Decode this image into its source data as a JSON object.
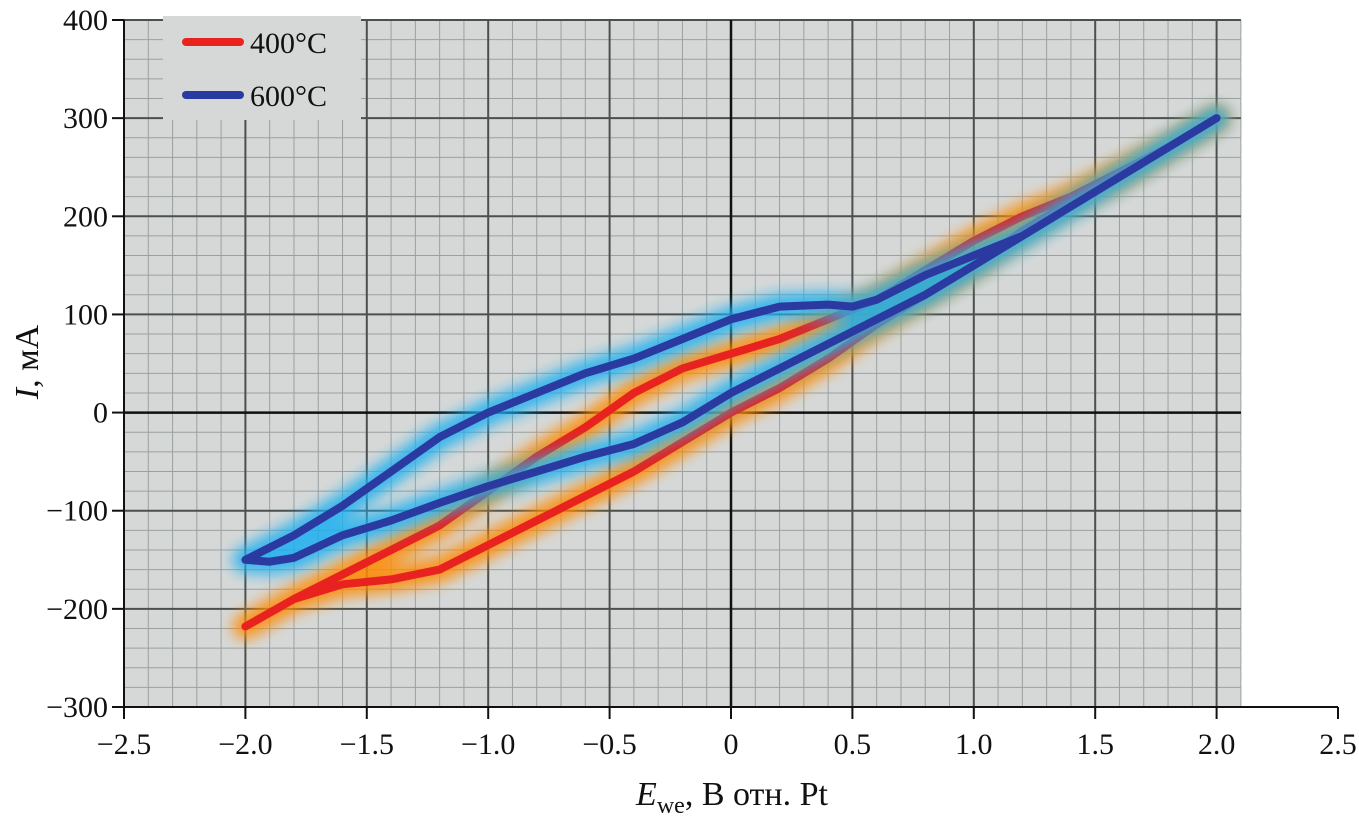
{
  "chart_data": {
    "type": "line",
    "title": "",
    "xlabel": {
      "symbol": "E",
      "subscript": "we",
      "rest": ", В отн. Pt"
    },
    "ylabel": {
      "symbol": "I",
      "rest": ", мА"
    },
    "xlim": [
      -2.5,
      2.5
    ],
    "ylim": [
      -300,
      400
    ],
    "xticks": [
      -2.5,
      -2.0,
      -1.5,
      -1.0,
      -0.5,
      0,
      0.5,
      1.0,
      1.5,
      2.0,
      2.5
    ],
    "xtick_labels": [
      "−2.5",
      "−2.0",
      "−1.5",
      "−1.0",
      "−0.5",
      "0",
      "0.5",
      "1.0",
      "1.5",
      "2.0",
      "2.5"
    ],
    "yticks": [
      -300,
      -200,
      -100,
      0,
      100,
      200,
      300,
      400
    ],
    "ytick_labels": [
      "−300",
      "−200",
      "−100",
      "0",
      "100",
      "200",
      "300",
      "400"
    ],
    "grid": true,
    "plot_area_x": [
      -2.5,
      2.1
    ],
    "legend_position": "top-left",
    "series": [
      {
        "name": "400°C",
        "color": "#e8231f",
        "glow": "#ff8a00",
        "x": [
          -2.0,
          -1.8,
          -1.6,
          -1.4,
          -1.2,
          -1.0,
          -0.8,
          -0.6,
          -0.4,
          -0.2,
          0,
          0.2,
          0.4,
          0.6,
          0.8,
          1.0,
          1.2,
          1.4,
          1.6,
          1.8,
          2.0,
          1.8,
          1.6,
          1.4,
          1.2,
          1.0,
          0.8,
          0.6,
          0.4,
          0.2,
          0,
          -0.2,
          -0.4,
          -0.6,
          -0.8,
          -1.0,
          -1.2,
          -1.4,
          -1.6,
          -1.8,
          -2.0
        ],
        "y": [
          -218,
          -190,
          -175,
          -170,
          -160,
          -135,
          -110,
          -85,
          -60,
          -30,
          0,
          25,
          55,
          90,
          120,
          150,
          185,
          215,
          240,
          270,
          300,
          270,
          245,
          220,
          200,
          175,
          145,
          115,
          95,
          75,
          60,
          45,
          20,
          -15,
          -45,
          -80,
          -115,
          -140,
          -165,
          -190,
          -218
        ]
      },
      {
        "name": "600°C",
        "color": "#2b3aa0",
        "glow": "#1fb0f0",
        "x": [
          -2.0,
          -1.9,
          -1.8,
          -1.6,
          -1.4,
          -1.2,
          -1.0,
          -0.8,
          -0.6,
          -0.4,
          -0.2,
          0,
          0.2,
          0.4,
          0.6,
          0.8,
          1.0,
          1.2,
          1.4,
          1.6,
          1.8,
          2.0,
          1.8,
          1.6,
          1.4,
          1.2,
          1.0,
          0.8,
          0.6,
          0.5,
          0.4,
          0.2,
          0,
          -0.2,
          -0.4,
          -0.6,
          -0.8,
          -1.0,
          -1.2,
          -1.4,
          -1.6,
          -1.8,
          -2.0
        ],
        "y": [
          -150,
          -152,
          -148,
          -125,
          -110,
          -92,
          -75,
          -60,
          -45,
          -32,
          -10,
          20,
          45,
          70,
          95,
          120,
          150,
          180,
          210,
          240,
          270,
          300,
          270,
          240,
          210,
          180,
          160,
          140,
          115,
          108,
          110,
          108,
          95,
          75,
          55,
          40,
          20,
          0,
          -25,
          -60,
          -95,
          -125,
          -150
        ]
      }
    ]
  }
}
